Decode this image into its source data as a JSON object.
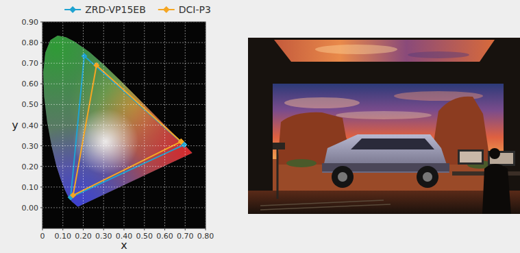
{
  "chart_data": {
    "type": "line",
    "xlabel": "x",
    "ylabel": "y",
    "xlim": [
      0,
      0.8
    ],
    "ylim": [
      -0.1,
      0.9
    ],
    "xticks": [
      0,
      {
        "value": 0.1,
        "label": "0.10"
      },
      {
        "value": 0.2,
        "label": "0.20"
      },
      {
        "value": 0.3,
        "label": "0.30"
      },
      {
        "value": 0.4,
        "label": "0.40"
      },
      {
        "value": 0.5,
        "label": "0.50"
      },
      {
        "value": 0.6,
        "label": "0.60"
      },
      {
        "value": 0.7,
        "label": "0.70"
      },
      {
        "value": 0.8,
        "label": "0.80"
      }
    ],
    "yticks": [
      {
        "value": 0,
        "label": "0.00"
      },
      {
        "value": 0.1,
        "label": "0.10"
      },
      {
        "value": 0.2,
        "label": "0.20"
      },
      {
        "value": 0.3,
        "label": "0.30"
      },
      {
        "value": 0.4,
        "label": "0.40"
      },
      {
        "value": 0.5,
        "label": "0.50"
      },
      {
        "value": 0.6,
        "label": "0.60"
      },
      {
        "value": 0.7,
        "label": "0.70"
      },
      {
        "value": 0.8,
        "label": "0.80"
      },
      {
        "value": 0.9,
        "label": "0.90"
      }
    ],
    "grid": true,
    "legend": "top",
    "series": [
      {
        "name": "ZRD-VP15EB",
        "color": "#1fa3d1",
        "marker": "diamond",
        "line_style": "solid",
        "x": [
          0.695,
          0.205,
          0.138,
          0.695
        ],
        "values": [
          0.305,
          0.735,
          0.05,
          0.305
        ]
      },
      {
        "name": "DCI-P3",
        "color": "#f5a623",
        "marker": "diamond",
        "line_style": "solid",
        "x": [
          0.68,
          0.265,
          0.15,
          0.68
        ],
        "values": [
          0.32,
          0.69,
          0.06,
          0.32
        ]
      },
      {
        "type": "area",
        "x": [
          0.1741,
          0.144,
          0.1241,
          0.1096,
          0.0913,
          0.0687,
          0.0454,
          0.0235,
          0.0082,
          0.0039,
          0.0139,
          0.0389,
          0.0743,
          0.1142,
          0.1547,
          0.2296,
          0.3016,
          0.3731,
          0.4441,
          0.5125,
          0.5752,
          0.627,
          0.6915,
          0.7347
        ],
        "values": [
          0.005,
          0.0297,
          0.0578,
          0.0868,
          0.1327,
          0.2007,
          0.295,
          0.4127,
          0.5384,
          0.6548,
          0.7502,
          0.812,
          0.8338,
          0.8262,
          0.8059,
          0.7543,
          0.6923,
          0.6245,
          0.5547,
          0.4866,
          0.4242,
          0.3725,
          0.3083,
          0.2653
        ]
      }
    ]
  }
}
